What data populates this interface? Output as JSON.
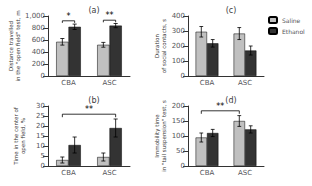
{
  "chart_data": [
    {
      "type": "bar",
      "title": "(a)",
      "ylabel": "Distance travelled\nin the \"open field\" test, m",
      "categories": [
        "CBA",
        "ASC"
      ],
      "series": [
        {
          "name": "Saline",
          "color": "#c0c0c0",
          "values": [
            570,
            520
          ],
          "errors": [
            55,
            40
          ]
        },
        {
          "name": "Ethanol",
          "color": "#333333",
          "values": [
            820,
            840
          ],
          "errors": [
            45,
            35
          ]
        }
      ],
      "ylim": [
        0,
        1000
      ],
      "yticks": [
        0,
        200,
        400,
        600,
        800,
        1000
      ],
      "grid": false,
      "annotations": [
        {
          "text": "*",
          "from": {
            "category": "CBA",
            "series": "Saline"
          },
          "to": {
            "category": "CBA",
            "series": "Ethanol"
          }
        },
        {
          "text": "**",
          "from": {
            "category": "ASC",
            "series": "Saline"
          },
          "to": {
            "category": "ASC",
            "series": "Ethanol"
          }
        }
      ]
    },
    {
      "type": "bar",
      "title": "(c)",
      "ylabel": "Duration\nof social contacts, s",
      "categories": [
        "CBA",
        "ASC"
      ],
      "series": [
        {
          "name": "Saline",
          "color": "#c0c0c0",
          "values": [
            295,
            283
          ],
          "errors": [
            35,
            40
          ]
        },
        {
          "name": "Ethanol",
          "color": "#333333",
          "values": [
            218,
            170
          ],
          "errors": [
            25,
            30
          ]
        }
      ],
      "ylim": [
        0,
        400
      ],
      "yticks": [
        0,
        100,
        200,
        300,
        400
      ],
      "grid": false,
      "legend": "upper right"
    },
    {
      "type": "bar",
      "title": "(b)",
      "ylabel": "Time in the center of\nopen field, %",
      "categories": [
        "CBA",
        "ASC"
      ],
      "series": [
        {
          "name": "Saline",
          "color": "#c0c0c0",
          "values": [
            3,
            4.5
          ],
          "errors": [
            1.5,
            2
          ]
        },
        {
          "name": "Ethanol",
          "color": "#333333",
          "values": [
            10.5,
            19
          ],
          "errors": [
            4,
            4.5
          ]
        }
      ],
      "ylim": [
        0,
        30
      ],
      "yticks": [
        0,
        5,
        10,
        15,
        20,
        25,
        30
      ],
      "grid": false,
      "annotations": [
        {
          "text": "**",
          "from": {
            "category": "CBA",
            "series": "Saline"
          },
          "to": {
            "category": "ASC",
            "series": "Ethanol"
          }
        }
      ]
    },
    {
      "type": "bar",
      "title": "(d)",
      "ylabel": "Immobility time\nin \"tail suspension\" test, s",
      "categories": [
        "CBA",
        "ASC"
      ],
      "series": [
        {
          "name": "Saline",
          "color": "#c0c0c0",
          "values": [
            95,
            150
          ],
          "errors": [
            15,
            18
          ]
        },
        {
          "name": "Ethanol",
          "color": "#333333",
          "values": [
            110,
            122
          ],
          "errors": [
            12,
            12
          ]
        }
      ],
      "ylim": [
        0,
        200
      ],
      "yticks": [
        0,
        50,
        100,
        150,
        200
      ],
      "grid": false,
      "annotations": [
        {
          "text": "**",
          "from": {
            "category": "CBA",
            "series": "Saline"
          },
          "to": {
            "category": "ASC",
            "series": "Saline"
          }
        }
      ]
    }
  ]
}
